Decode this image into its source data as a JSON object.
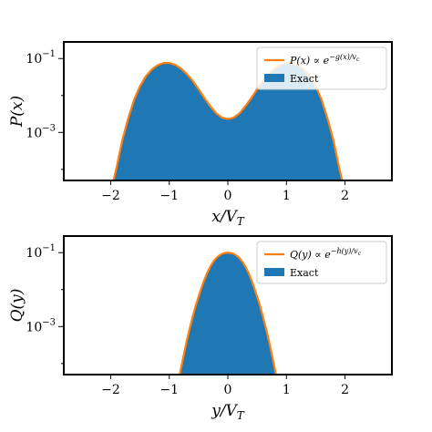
{
  "chart_data": [
    {
      "type": "area",
      "xlabel": "x/V_T",
      "ylabel": "P(x)",
      "xlim": [
        -2.8,
        2.8
      ],
      "ylim_log10": [
        -4.3,
        -0.55
      ],
      "yscale": "log",
      "xticks": [
        -2,
        -1,
        0,
        1,
        2
      ],
      "xtick_labels": [
        "−2",
        "−1",
        "0",
        "1",
        "2"
      ],
      "yticks": [
        -3,
        -1
      ],
      "ytick_labels": [
        "10^{-3}",
        "10^{-1}"
      ],
      "legend_position": "top-right",
      "series": [
        {
          "name": "P(x) ∝ e^{-g(x)/v_c}",
          "kind": "line",
          "color": "#ff7f0e"
        },
        {
          "name": "Exact",
          "kind": "fill",
          "color": "#1f77b4"
        }
      ],
      "x": [
        -1.95,
        -1.9,
        -1.8,
        -1.7,
        -1.6,
        -1.5,
        -1.4,
        -1.3,
        -1.2,
        -1.1,
        -1.0,
        -0.9,
        -0.8,
        -0.7,
        -0.6,
        -0.5,
        -0.4,
        -0.3,
        -0.2,
        -0.1,
        0.0,
        0.1,
        0.2,
        0.3,
        0.4,
        0.5,
        0.6,
        0.7,
        0.8,
        0.9,
        1.0,
        1.1,
        1.2,
        1.3,
        1.4,
        1.5,
        1.6,
        1.7,
        1.8,
        1.9,
        1.95
      ],
      "log10_y": [
        -4.3,
        -3.95,
        -3.2,
        -2.62,
        -2.12,
        -1.75,
        -1.48,
        -1.3,
        -1.18,
        -1.12,
        -1.12,
        -1.17,
        -1.27,
        -1.42,
        -1.6,
        -1.83,
        -2.07,
        -2.29,
        -2.48,
        -2.6,
        -2.64,
        -2.6,
        -2.48,
        -2.29,
        -2.07,
        -1.83,
        -1.6,
        -1.42,
        -1.27,
        -1.17,
        -1.12,
        -1.12,
        -1.18,
        -1.3,
        -1.48,
        -1.75,
        -2.12,
        -2.62,
        -3.2,
        -3.95,
        -4.3
      ]
    },
    {
      "type": "area",
      "xlabel": "y/V_T",
      "ylabel": "Q(y)",
      "xlim": [
        -2.8,
        2.8
      ],
      "ylim_log10": [
        -4.3,
        -0.55
      ],
      "yscale": "log",
      "xticks": [
        -2,
        -1,
        0,
        1,
        2
      ],
      "xtick_labels": [
        "−2",
        "−1",
        "0",
        "1",
        "2"
      ],
      "yticks": [
        -3,
        -1
      ],
      "ytick_labels": [
        "10^{-3}",
        "10^{-1}"
      ],
      "legend_position": "top-right",
      "series": [
        {
          "name": "Q(y) ∝ e^{-h(y)/v_c}",
          "kind": "line",
          "color": "#ff7f0e"
        },
        {
          "name": "Exact",
          "kind": "fill",
          "color": "#1f77b4"
        }
      ],
      "x": [
        -0.82,
        -0.8,
        -0.75,
        -0.7,
        -0.65,
        -0.6,
        -0.55,
        -0.5,
        -0.45,
        -0.4,
        -0.35,
        -0.3,
        -0.25,
        -0.2,
        -0.15,
        -0.1,
        -0.05,
        0.0,
        0.05,
        0.1,
        0.15,
        0.2,
        0.25,
        0.3,
        0.35,
        0.4,
        0.45,
        0.5,
        0.55,
        0.6,
        0.65,
        0.7,
        0.75,
        0.8,
        0.82
      ],
      "log10_y": [
        -4.3,
        -4.13,
        -3.75,
        -3.38,
        -3.05,
        -2.74,
        -2.45,
        -2.19,
        -1.95,
        -1.73,
        -1.54,
        -1.38,
        -1.25,
        -1.15,
        -1.08,
        -1.03,
        -1.01,
        -1.0,
        -1.01,
        -1.03,
        -1.08,
        -1.15,
        -1.25,
        -1.38,
        -1.54,
        -1.73,
        -1.95,
        -2.19,
        -2.45,
        -2.74,
        -3.05,
        -3.38,
        -3.75,
        -4.13,
        -4.3
      ]
    }
  ]
}
